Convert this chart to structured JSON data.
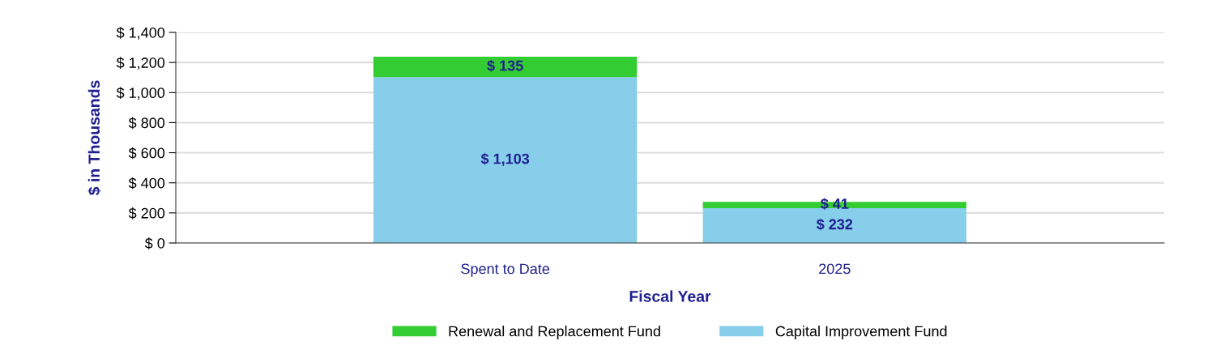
{
  "chart_data": {
    "type": "bar",
    "stacked": true,
    "xlabel": "Fiscal Year",
    "ylabel": "$ in Thousands",
    "categories": [
      "Spent to Date",
      "2025"
    ],
    "series": [
      {
        "name": "Capital Improvement Fund",
        "color": "#87ceeb",
        "values": [
          1103,
          232
        ],
        "value_labels": [
          "$ 1,103",
          "$ 232"
        ]
      },
      {
        "name": "Renewal and Replacement Fund",
        "color": "#33cc33",
        "values": [
          135,
          41
        ],
        "value_labels": [
          "$ 135",
          "$ 41"
        ]
      }
    ],
    "ylim": [
      0,
      1400
    ],
    "yticks": [
      {
        "value": 0,
        "label": "$ 0"
      },
      {
        "value": 200,
        "label": "$ 200"
      },
      {
        "value": 400,
        "label": "$ 400"
      },
      {
        "value": 600,
        "label": "$ 600"
      },
      {
        "value": 800,
        "label": "$ 800"
      },
      {
        "value": 1000,
        "label": "$ 1,000"
      },
      {
        "value": 1200,
        "label": "$ 1,200"
      },
      {
        "value": 1400,
        "label": "$ 1,400"
      }
    ],
    "grid": "y",
    "legend": "bottom"
  }
}
